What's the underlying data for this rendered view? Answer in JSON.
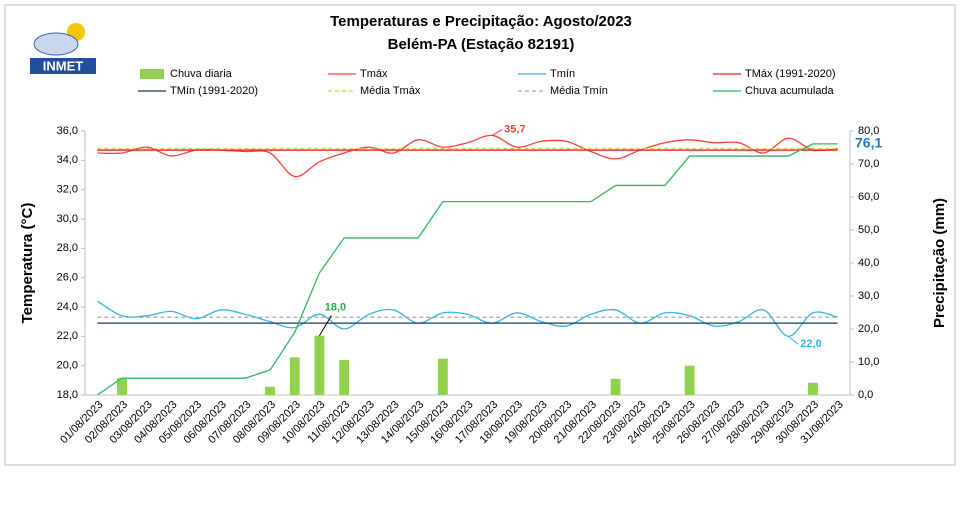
{
  "chart_data": {
    "type": "combo",
    "logo": "INMET",
    "title": "Temperaturas e Precipitação: Agosto/2023",
    "subtitle": "Belém-PA (Estação 82191)",
    "ylabel": "Temperatura (°C)",
    "y2label": "Precipitação (mm)",
    "categories": [
      "01/08/2023",
      "02/08/2023",
      "03/08/2023",
      "04/08/2023",
      "05/08/2023",
      "06/08/2023",
      "07/08/2023",
      "08/08/2023",
      "09/08/2023",
      "10/08/2023",
      "11/08/2023",
      "12/08/2023",
      "13/08/2023",
      "14/08/2023",
      "15/08/2023",
      "16/08/2023",
      "17/08/2023",
      "18/08/2023",
      "19/08/2023",
      "20/08/2023",
      "21/08/2023",
      "22/08/2023",
      "23/08/2023",
      "24/08/2023",
      "25/08/2023",
      "26/08/2023",
      "27/08/2023",
      "28/08/2023",
      "29/08/2023",
      "30/08/2023",
      "31/08/2023"
    ],
    "ylim": [
      18,
      36
    ],
    "yticks": [
      {
        "value": 18,
        "label": "18,0"
      },
      {
        "value": 20,
        "label": "20,0"
      },
      {
        "value": 22,
        "label": "22,0"
      },
      {
        "value": 24,
        "label": "24,0"
      },
      {
        "value": 26,
        "label": "26,0"
      },
      {
        "value": 28,
        "label": "28,0"
      },
      {
        "value": 30,
        "label": "30,0"
      },
      {
        "value": 32,
        "label": "32,0"
      },
      {
        "value": 34,
        "label": "34,0"
      },
      {
        "value": 36,
        "label": "36,0"
      }
    ],
    "y2lim": [
      0,
      80
    ],
    "y2ticks": [
      {
        "value": 0,
        "label": "0,0"
      },
      {
        "value": 10,
        "label": "10,0"
      },
      {
        "value": 20,
        "label": "20,0"
      },
      {
        "value": 30,
        "label": "30,0"
      },
      {
        "value": 40,
        "label": "40,0"
      },
      {
        "value": 50,
        "label": "50,0"
      },
      {
        "value": 60,
        "label": "60,0"
      },
      {
        "value": 70,
        "label": "70,0"
      },
      {
        "value": 80,
        "label": "80,0"
      }
    ],
    "series": [
      {
        "name": "Chuva diaria",
        "type": "bar",
        "axis": "y2",
        "color": "#92d050",
        "values": [
          0,
          5.1,
          0,
          0,
          0,
          0,
          0,
          2.5,
          11.4,
          18.0,
          10.6,
          0,
          0,
          0,
          11.0,
          0,
          0,
          0,
          0,
          0,
          0,
          4.9,
          0,
          0,
          8.9,
          0,
          0,
          0,
          0,
          3.7,
          0
        ],
        "value_labels": [
          null,
          null,
          null,
          null,
          null,
          null,
          null,
          null,
          null,
          "18,0",
          null,
          null,
          null,
          null,
          null,
          null,
          null,
          null,
          null,
          null,
          null,
          null,
          null,
          null,
          null,
          null,
          null,
          null,
          null,
          null,
          null
        ]
      },
      {
        "name": "Tmáx",
        "type": "line",
        "smooth": true,
        "color": "#ff3b3b",
        "values": [
          34.5,
          34.5,
          34.9,
          34.3,
          34.7,
          34.7,
          34.6,
          34.5,
          32.9,
          33.9,
          34.5,
          34.9,
          34.5,
          35.4,
          34.9,
          35.2,
          35.7,
          34.9,
          35.3,
          35.3,
          34.6,
          34.1,
          34.7,
          35.2,
          35.4,
          35.2,
          35.2,
          34.5,
          35.5,
          34.7,
          34.8
        ],
        "value_labels": [
          null,
          null,
          null,
          null,
          null,
          null,
          null,
          null,
          null,
          null,
          null,
          null,
          null,
          null,
          null,
          null,
          "35,7",
          null,
          null,
          null,
          null,
          null,
          null,
          null,
          null,
          null,
          null,
          null,
          null,
          null,
          null
        ]
      },
      {
        "name": "Tmín",
        "type": "line",
        "smooth": true,
        "color": "#33b5e5",
        "values": [
          24.4,
          23.4,
          23.4,
          23.7,
          23.2,
          23.8,
          23.5,
          23.0,
          22.6,
          23.5,
          22.5,
          23.5,
          23.8,
          22.9,
          23.6,
          23.5,
          22.9,
          23.6,
          23.0,
          22.7,
          23.5,
          23.8,
          22.9,
          23.6,
          23.4,
          22.7,
          23.0,
          23.8,
          22.0,
          23.6,
          23.3
        ],
        "value_labels": [
          null,
          null,
          null,
          null,
          null,
          null,
          null,
          null,
          null,
          null,
          null,
          null,
          null,
          null,
          null,
          null,
          null,
          null,
          null,
          null,
          null,
          null,
          null,
          null,
          null,
          null,
          null,
          null,
          "22,0",
          null,
          null
        ]
      },
      {
        "name": "TMáx (1991-2020)",
        "type": "line",
        "color": "#e02020",
        "values": [
          34.7,
          34.7,
          34.7,
          34.7,
          34.7,
          34.7,
          34.7,
          34.7,
          34.7,
          34.7,
          34.7,
          34.7,
          34.7,
          34.7,
          34.7,
          34.7,
          34.7,
          34.7,
          34.7,
          34.7,
          34.7,
          34.7,
          34.7,
          34.7,
          34.7,
          34.7,
          34.7,
          34.7,
          34.7,
          34.7,
          34.7
        ]
      },
      {
        "name": "TMín (1991-2020)",
        "type": "line",
        "color": "#1f3864",
        "values": [
          22.9,
          22.9,
          22.9,
          22.9,
          22.9,
          22.9,
          22.9,
          22.9,
          22.9,
          22.9,
          22.9,
          22.9,
          22.9,
          22.9,
          22.9,
          22.9,
          22.9,
          22.9,
          22.9,
          22.9,
          22.9,
          22.9,
          22.9,
          22.9,
          22.9,
          22.9,
          22.9,
          22.9,
          22.9,
          22.9,
          22.9
        ]
      },
      {
        "name": "Média Tmáx",
        "type": "line",
        "dashed": true,
        "color": "#e6c84a",
        "values": [
          34.8,
          34.8,
          34.8,
          34.8,
          34.8,
          34.8,
          34.8,
          34.8,
          34.8,
          34.8,
          34.8,
          34.8,
          34.8,
          34.8,
          34.8,
          34.8,
          34.8,
          34.8,
          34.8,
          34.8,
          34.8,
          34.8,
          34.8,
          34.8,
          34.8,
          34.8,
          34.8,
          34.8,
          34.8,
          34.8,
          34.8
        ]
      },
      {
        "name": "Média Tmín",
        "type": "line",
        "dashed": true,
        "color": "#a6a6a6",
        "values": [
          23.3,
          23.3,
          23.3,
          23.3,
          23.3,
          23.3,
          23.3,
          23.3,
          23.3,
          23.3,
          23.3,
          23.3,
          23.3,
          23.3,
          23.3,
          23.3,
          23.3,
          23.3,
          23.3,
          23.3,
          23.3,
          23.3,
          23.3,
          23.3,
          23.3,
          23.3,
          23.3,
          23.3,
          23.3,
          23.3,
          23.3
        ]
      },
      {
        "name": "Chuva acumulada",
        "type": "line",
        "axis": "y2",
        "color": "#2eb85c",
        "values": [
          0,
          5.1,
          5.1,
          5.1,
          5.1,
          5.1,
          5.1,
          7.6,
          19.0,
          37.0,
          47.6,
          47.6,
          47.6,
          47.6,
          58.6,
          58.6,
          58.6,
          58.6,
          58.6,
          58.6,
          58.6,
          63.5,
          63.5,
          63.5,
          72.4,
          72.4,
          72.4,
          72.4,
          72.4,
          76.1,
          76.1
        ],
        "value_labels": [
          null,
          null,
          null,
          null,
          null,
          null,
          null,
          null,
          null,
          null,
          null,
          null,
          null,
          null,
          null,
          null,
          null,
          null,
          null,
          null,
          null,
          null,
          null,
          null,
          null,
          null,
          null,
          null,
          null,
          null,
          "76,1"
        ]
      }
    ]
  }
}
